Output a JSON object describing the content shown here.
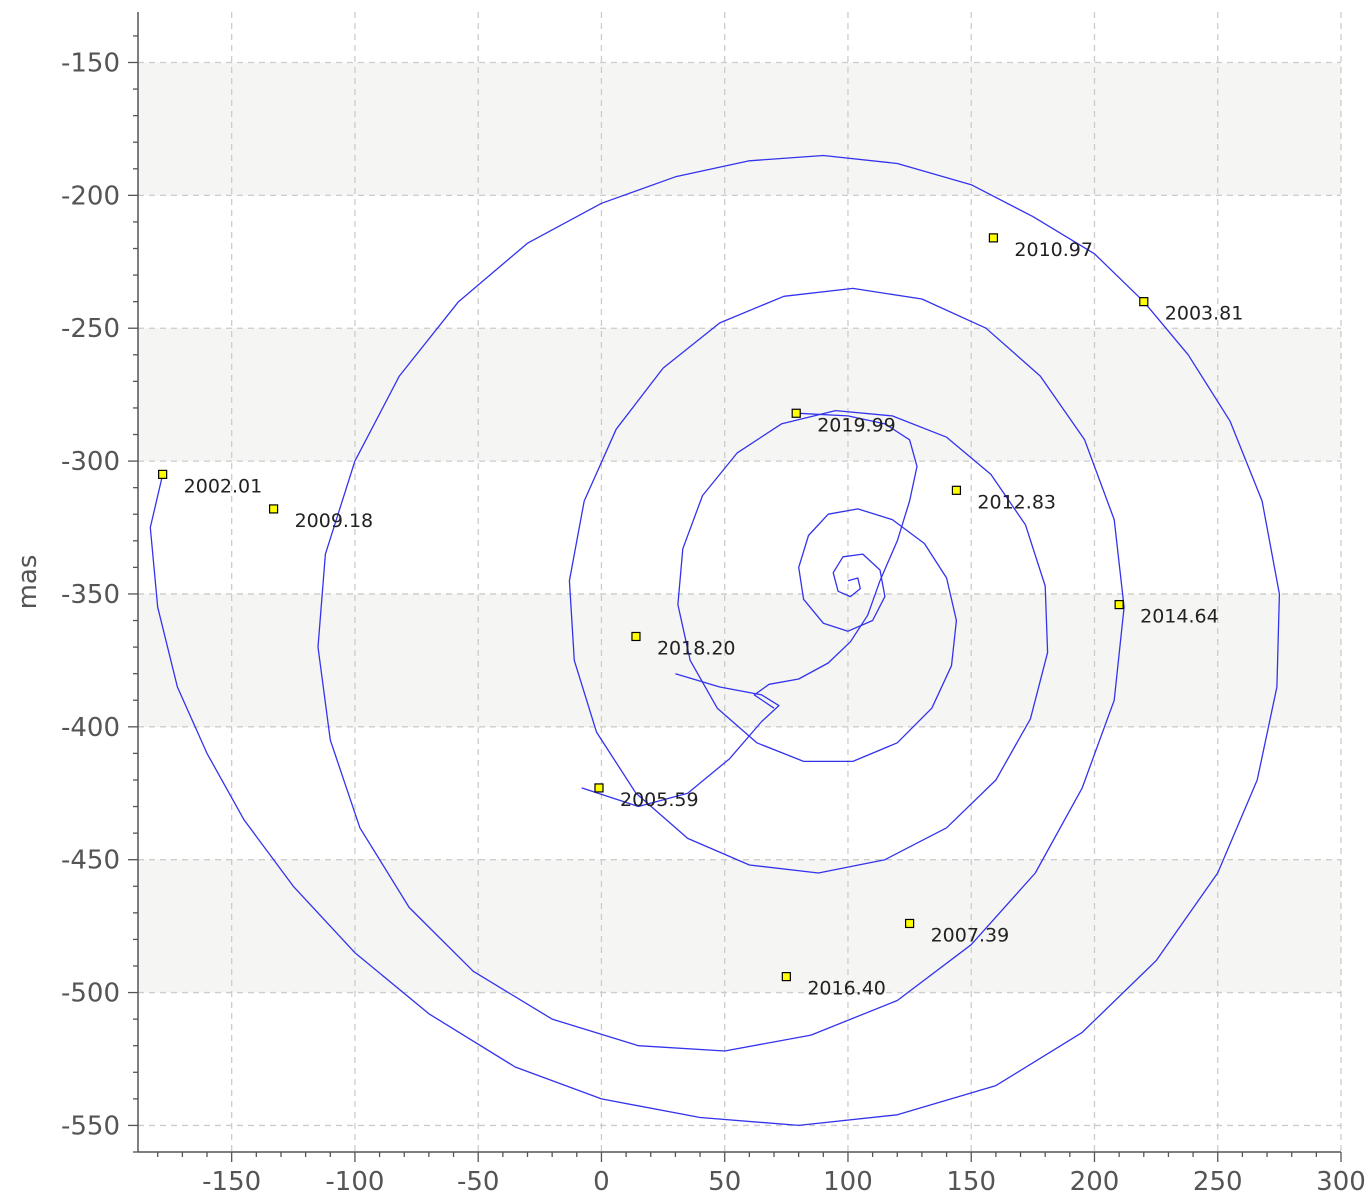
{
  "chart_data": {
    "type": "line",
    "title": "",
    "xlabel": "",
    "ylabel": "mas",
    "xlim": [
      -188,
      300
    ],
    "ylim": [
      -560,
      -131
    ],
    "x_ticks": [
      -150,
      -100,
      -50,
      0,
      50,
      100,
      150,
      200,
      250,
      300
    ],
    "y_ticks": [
      -150,
      -200,
      -250,
      -300,
      -350,
      -400,
      -450,
      -500,
      -550
    ],
    "x_tick_labels": [
      "-150",
      "-100",
      "-50",
      "0",
      "50",
      "100",
      "150",
      "200",
      "250",
      "300"
    ],
    "y_tick_labels": [
      "-150",
      "-200",
      "-250",
      "-300",
      "-350",
      "-400",
      "-450",
      "-500",
      "-550"
    ],
    "grid": true,
    "shaded_bands": [
      [
        -200,
        -150
      ],
      [
        -300,
        -250
      ],
      [
        -400,
        -350
      ],
      [
        -500,
        -450
      ]
    ],
    "colors": {
      "line": "#3333ee",
      "marker_fill": "#ffff00",
      "marker_edge": "#000000",
      "band": "#f5f5f3",
      "grid": "#cccccc",
      "axis": "#555555"
    },
    "series": [
      {
        "points": [
          [
            -178,
            -305
          ],
          [
            -183,
            -325
          ],
          [
            -180,
            -355
          ],
          [
            -172,
            -385
          ],
          [
            -160,
            -410
          ],
          [
            -145,
            -435
          ],
          [
            -125,
            -460
          ],
          [
            -100,
            -485
          ],
          [
            -70,
            -508
          ],
          [
            -35,
            -528
          ],
          [
            0,
            -540
          ],
          [
            40,
            -547
          ],
          [
            80,
            -550
          ],
          [
            120,
            -546
          ],
          [
            160,
            -535
          ],
          [
            195,
            -515
          ],
          [
            225,
            -488
          ],
          [
            250,
            -455
          ],
          [
            266,
            -420
          ],
          [
            274,
            -385
          ],
          [
            275,
            -350
          ],
          [
            268,
            -315
          ],
          [
            255,
            -285
          ],
          [
            238,
            -260
          ],
          [
            220,
            -240
          ],
          [
            200,
            -222
          ],
          [
            175,
            -208
          ],
          [
            150,
            -196
          ],
          [
            120,
            -188
          ],
          [
            90,
            -185
          ],
          [
            60,
            -187
          ],
          [
            30,
            -193
          ],
          [
            0,
            -203
          ],
          [
            -30,
            -218
          ],
          [
            -58,
            -240
          ],
          [
            -82,
            -268
          ],
          [
            -100,
            -300
          ],
          [
            -112,
            -335
          ],
          [
            -115,
            -370
          ],
          [
            -110,
            -405
          ],
          [
            -98,
            -438
          ],
          [
            -78,
            -468
          ],
          [
            -52,
            -492
          ],
          [
            -20,
            -510
          ],
          [
            15,
            -520
          ],
          [
            50,
            -522
          ],
          [
            85,
            -516
          ],
          [
            120,
            -503
          ],
          [
            150,
            -482
          ],
          [
            176,
            -455
          ],
          [
            195,
            -423
          ],
          [
            208,
            -390
          ],
          [
            212,
            -355
          ],
          [
            208,
            -322
          ],
          [
            196,
            -292
          ],
          [
            178,
            -268
          ],
          [
            156,
            -250
          ],
          [
            130,
            -239
          ],
          [
            102,
            -235
          ],
          [
            74,
            -238
          ],
          [
            48,
            -248
          ],
          [
            25,
            -265
          ],
          [
            6,
            -288
          ],
          [
            -7,
            -315
          ],
          [
            -13,
            -345
          ],
          [
            -11,
            -375
          ],
          [
            -2,
            -402
          ],
          [
            14,
            -425
          ],
          [
            35,
            -442
          ],
          [
            60,
            -452
          ],
          [
            88,
            -455
          ],
          [
            115,
            -450
          ],
          [
            140,
            -438
          ],
          [
            160,
            -420
          ],
          [
            174,
            -397
          ],
          [
            181,
            -372
          ],
          [
            180,
            -347
          ],
          [
            172,
            -324
          ],
          [
            158,
            -305
          ],
          [
            140,
            -291
          ],
          [
            118,
            -283
          ],
          [
            95,
            -281
          ],
          [
            73,
            -286
          ],
          [
            55,
            -297
          ],
          [
            41,
            -313
          ],
          [
            33,
            -333
          ],
          [
            31,
            -354
          ],
          [
            36,
            -375
          ],
          [
            47,
            -393
          ],
          [
            63,
            -406
          ],
          [
            82,
            -413
          ],
          [
            102,
            -413
          ],
          [
            120,
            -406
          ],
          [
            134,
            -393
          ],
          [
            142,
            -377
          ],
          [
            144,
            -360
          ],
          [
            140,
            -344
          ],
          [
            131,
            -331
          ],
          [
            118,
            -322
          ],
          [
            104,
            -318
          ],
          [
            92,
            -320
          ],
          [
            84,
            -328
          ],
          [
            80,
            -340
          ],
          [
            82,
            -352
          ],
          [
            90,
            -361
          ],
          [
            100,
            -364
          ],
          [
            110,
            -360
          ],
          [
            115,
            -351
          ],
          [
            113,
            -341
          ],
          [
            106,
            -335
          ],
          [
            98,
            -336
          ],
          [
            94,
            -342
          ],
          [
            96,
            -349
          ],
          [
            101,
            -351
          ],
          [
            105,
            -348
          ],
          [
            104,
            -344
          ],
          [
            100,
            -345
          ]
        ]
      },
      {
        "points": [
          [
            80,
            -282
          ],
          [
            100,
            -283
          ],
          [
            115,
            -286
          ],
          [
            125,
            -292
          ],
          [
            128,
            -302
          ],
          [
            125,
            -315
          ],
          [
            120,
            -330
          ],
          [
            113,
            -345
          ],
          [
            108,
            -358
          ],
          [
            101,
            -368
          ],
          [
            92,
            -376
          ],
          [
            80,
            -382
          ],
          [
            68,
            -384
          ],
          [
            62,
            -388
          ],
          [
            70,
            -393
          ]
        ]
      },
      {
        "points": [
          [
            -8,
            -423
          ],
          [
            15,
            -430
          ],
          [
            35,
            -425
          ],
          [
            52,
            -412
          ],
          [
            65,
            -398
          ],
          [
            72,
            -392
          ],
          [
            65,
            -388
          ],
          [
            48,
            -385
          ],
          [
            30,
            -380
          ]
        ]
      }
    ],
    "markers": [
      {
        "x": -178,
        "y": -305,
        "label": "2002.01"
      },
      {
        "x": 220,
        "y": -240,
        "label": "2003.81"
      },
      {
        "x": -1,
        "y": -423,
        "label": "2005.59"
      },
      {
        "x": 125,
        "y": -474,
        "label": "2007.39"
      },
      {
        "x": -133,
        "y": -318,
        "label": "2009.18"
      },
      {
        "x": 159,
        "y": -216,
        "label": "2010.97"
      },
      {
        "x": 144,
        "y": -311,
        "label": "2012.83"
      },
      {
        "x": 210,
        "y": -354,
        "label": "2014.64"
      },
      {
        "x": 75,
        "y": -494,
        "label": "2016.40"
      },
      {
        "x": 14,
        "y": -366,
        "label": "2018.20"
      },
      {
        "x": 79,
        "y": -282,
        "label": "2019.99"
      }
    ]
  }
}
